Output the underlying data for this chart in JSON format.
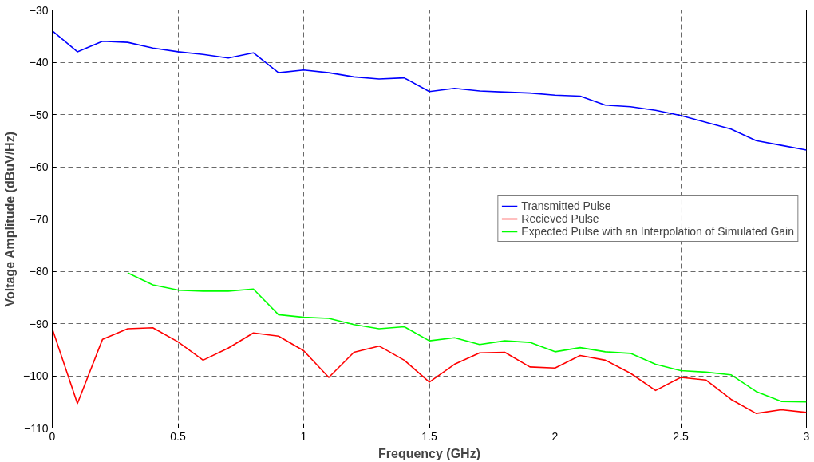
{
  "chart_data": {
    "type": "line",
    "xlabel": "Frequency (GHz)",
    "ylabel": "Voltage Amplitude (dBuV/Hz)",
    "x": [
      0,
      0.1,
      0.2,
      0.3,
      0.4,
      0.5,
      0.6,
      0.7,
      0.8,
      0.9,
      1.0,
      1.1,
      1.2,
      1.3,
      1.4,
      1.5,
      1.6,
      1.7,
      1.8,
      1.9,
      2.0,
      2.1,
      2.2,
      2.3,
      2.4,
      2.5,
      2.6,
      2.7,
      2.8,
      2.9,
      3.0
    ],
    "series": [
      {
        "name": "Transmitted Pulse",
        "color": "#0000ff",
        "values": [
          -34,
          -38,
          -36,
          -36.2,
          -37.3,
          -38,
          -38.5,
          -39.2,
          -38.2,
          -42,
          -41.5,
          -42,
          -42.8,
          -43.2,
          -43,
          -45.6,
          -45,
          -45.5,
          -45.7,
          -45.9,
          -46.3,
          -46.5,
          -48.2,
          -48.5,
          -49.2,
          -50.2,
          -51.5,
          -52.8,
          -55,
          -55.9,
          -56.8
        ]
      },
      {
        "name": "Recieved Pulse",
        "color": "#ff0000",
        "values": [
          -91,
          -105.3,
          -93,
          -91,
          -90.8,
          -93.5,
          -97,
          -94.7,
          -91.8,
          -92.4,
          -95.2,
          -100.3,
          -95.5,
          -94.3,
          -97,
          -101.2,
          -97.8,
          -95.6,
          -95.5,
          -98.3,
          -98.5,
          -96.1,
          -97,
          -99.5,
          -102.8,
          -100.3,
          -100.8,
          -104.5,
          -107.2,
          -106.5,
          -107
        ]
      },
      {
        "name": "Expected Pulse with an Interpolation of Simulated Gain",
        "color": "#00ff00",
        "values": [
          null,
          null,
          null,
          -80.3,
          -82.6,
          -83.6,
          -83.8,
          -83.8,
          -83.4,
          -88.3,
          -88.8,
          -89,
          -90.2,
          -91,
          -90.6,
          -93.3,
          -92.7,
          -94,
          -93.3,
          -93.6,
          -95.4,
          -94.6,
          -95.4,
          -95.7,
          -97.8,
          -99,
          -99.3,
          -99.8,
          -103,
          -104.9,
          -105
        ]
      }
    ],
    "xlim": [
      0,
      3
    ],
    "xticks": [
      0,
      0.5,
      1,
      1.5,
      2,
      2.5,
      3
    ],
    "ylim": [
      -110,
      -30
    ],
    "yticks": [
      -110,
      -100,
      -90,
      -80,
      -70,
      -60,
      -50,
      -40,
      -30
    ],
    "grid": true,
    "legend": "right",
    "line_style": "solid",
    "marker": "none"
  }
}
